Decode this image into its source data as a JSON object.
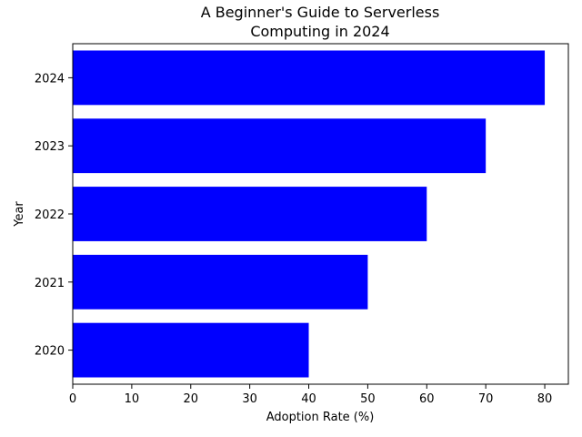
{
  "chart_data": {
    "type": "bar",
    "orientation": "horizontal",
    "title_lines": [
      "A Beginner's Guide to Serverless",
      "Computing in 2024"
    ],
    "xlabel": "Adoption Rate (%)",
    "ylabel": "Year",
    "categories": [
      "2020",
      "2021",
      "2022",
      "2023",
      "2024"
    ],
    "values": [
      40,
      50,
      60,
      70,
      80
    ],
    "xlim": [
      0,
      84
    ],
    "xticks": [
      0,
      10,
      20,
      30,
      40,
      50,
      60,
      70,
      80
    ],
    "bar_color": "#0000ff",
    "grid": false,
    "legend": "none"
  }
}
